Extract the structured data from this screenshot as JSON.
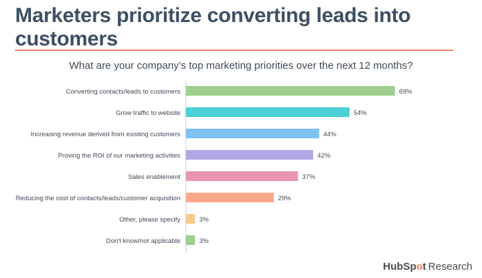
{
  "title": "Marketers prioritize converting leads into customers",
  "subtitle": "What are your company’s top marketing priorities over the next 12 months?",
  "logo": {
    "hub": "HubSp",
    "o": "o",
    "spot": "t",
    "research": "Research"
  },
  "chart_data": {
    "type": "bar",
    "orientation": "horizontal",
    "title": "What are your company’s top marketing priorities over the next 12 months?",
    "categories": [
      "Converting contacts/leads to customers",
      "Grow traffic to website",
      "Increasing revenue derived from existing customers",
      "Proving the ROI of our marketing activities",
      "Sales enablement",
      "Reducing the cost of contacts/leads/customer acquisition",
      "Other, please specify",
      "Don't know/not applicable"
    ],
    "values": [
      69,
      54,
      44,
      42,
      37,
      29,
      3,
      3
    ],
    "value_labels": [
      "69%",
      "54%",
      "44%",
      "42%",
      "37%",
      "29%",
      "3%",
      "3%"
    ],
    "colors": [
      "#9fce8e",
      "#4dd0d8",
      "#7ec3f2",
      "#b3a6e6",
      "#e995ad",
      "#f9a98a",
      "#f8ca8e",
      "#9fce8e"
    ],
    "xlim": [
      0,
      75
    ],
    "grid": false
  }
}
